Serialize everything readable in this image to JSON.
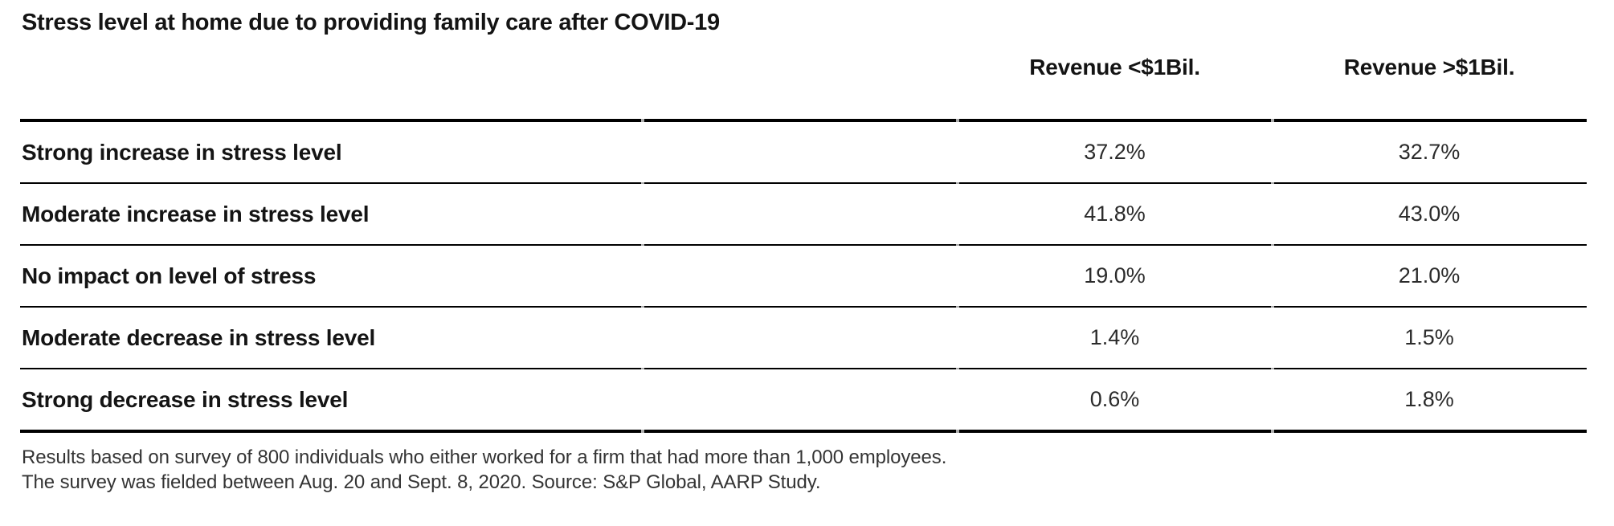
{
  "title": "Stress level at home due to providing family care after COVID-19",
  "table": {
    "columns": [
      "Revenue <$1Bil.",
      "Revenue >$1Bil."
    ],
    "rows": [
      {
        "label": "Strong increase in stress level",
        "values": [
          "37.2%",
          "32.7%"
        ]
      },
      {
        "label": "Moderate increase in stress level",
        "values": [
          "41.8%",
          "43.0%"
        ]
      },
      {
        "label": "No impact on level of stress",
        "values": [
          "19.0%",
          "21.0%"
        ]
      },
      {
        "label": "Moderate decrease in stress level",
        "values": [
          "1.4%",
          "1.5%"
        ]
      },
      {
        "label": "Strong decrease in stress level",
        "values": [
          "0.6%",
          "1.8%"
        ]
      }
    ]
  },
  "footer": {
    "line1": "Results based on survey of 800 individuals who either worked for a firm that had more than 1,000 employees.",
    "line2": "The survey was fielded between Aug. 20 and Sept. 8, 2020. Source: S&P Global, AARP Study."
  },
  "colors": {
    "background": "#ffffff",
    "text": "#141414",
    "value_text": "#2b2b2b",
    "note_text": "#343434",
    "rule": "#000000",
    "rule_notch": "#ababab"
  },
  "chart_data": {
    "type": "table",
    "title": "Stress level at home due to providing family care after COVID-19",
    "categories": [
      "Strong increase in stress level",
      "Moderate increase in stress level",
      "No impact on level of stress",
      "Moderate decrease in stress level",
      "Strong decrease in stress level"
    ],
    "series": [
      {
        "name": "Revenue <$1Bil.",
        "values": [
          37.2,
          41.8,
          19.0,
          1.4,
          0.6
        ]
      },
      {
        "name": "Revenue >$1Bil.",
        "values": [
          32.7,
          43.0,
          21.0,
          1.5,
          1.8
        ]
      }
    ],
    "value_unit": "%",
    "notes": [
      "Results based on survey of 800 individuals who either worked for a firm that had more than 1,000 employees.",
      "The survey was fielded between Aug. 20 and Sept. 8, 2020. Source: S&P Global, AARP Study."
    ],
    "layout": {
      "label_column_align": "left",
      "value_columns_align": "center",
      "grid": "horizontal-rules-only"
    }
  }
}
